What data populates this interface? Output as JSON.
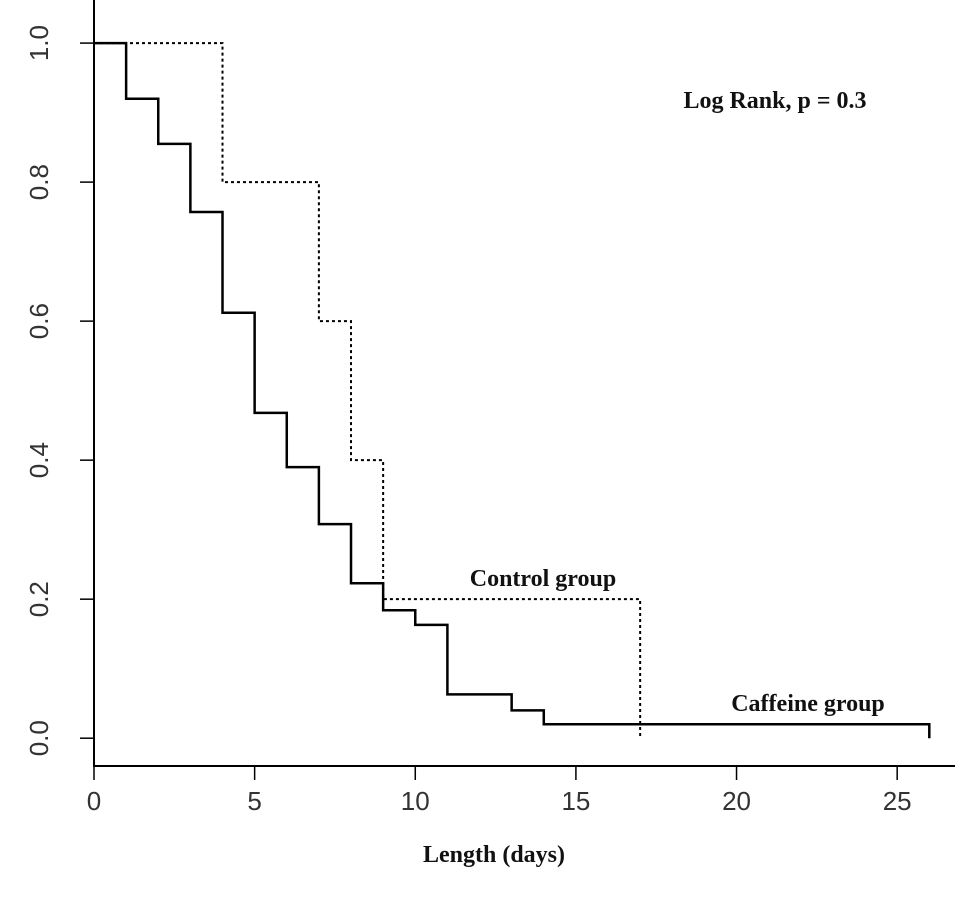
{
  "chart_data": {
    "type": "line",
    "drawstyle": "steps-post",
    "x_label": "Length (days)",
    "xlim": [
      0,
      26.8
    ],
    "ylim": [
      -0.04,
      1.062
    ],
    "xticks": [
      0,
      5,
      10,
      15,
      20,
      25
    ],
    "yticks": [
      {
        "value": 0,
        "label": "0.0"
      },
      0.2,
      0.4,
      0.6,
      0.8,
      {
        "value": 1,
        "label": "1.0"
      }
    ],
    "series": [
      {
        "name": "Caffeine group",
        "color": "#000000",
        "linestyle": "solid",
        "x": [
          0,
          1,
          2,
          3,
          4,
          5,
          6,
          7,
          8,
          9,
          10,
          11,
          13,
          14,
          26
        ],
        "values": [
          1,
          0.92,
          0.855,
          0.757,
          0.612,
          0.468,
          0.39,
          0.308,
          0.223,
          0.184,
          0.163,
          0.063,
          0.04,
          0.02,
          0
        ]
      },
      {
        "name": "Control group",
        "color": "#000000",
        "linestyle": "dotted",
        "x": [
          0,
          4,
          7,
          8,
          9,
          17
        ],
        "values": [
          1,
          0.8,
          0.6,
          0.4,
          0.2,
          0
        ]
      }
    ],
    "annotations": [
      "Log Rank, p = 0.3"
    ]
  }
}
